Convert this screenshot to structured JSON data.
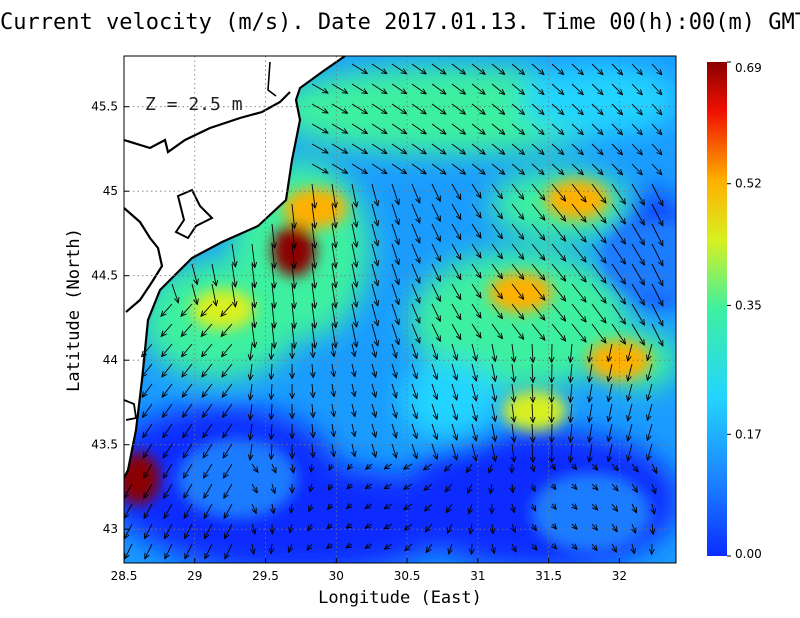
{
  "title": "Current velocity (m/s). Date 2017.01.13. Time 00(h):00(m) GMT",
  "depth_label": "Z = 2.5 m",
  "x_axis": {
    "label": "Longitude (East)",
    "range": [
      28.5,
      32.4
    ],
    "ticks": [
      {
        "v": 28.5,
        "t": "28.5"
      },
      {
        "v": 29,
        "t": "29"
      },
      {
        "v": 29.5,
        "t": "29.5"
      },
      {
        "v": 30,
        "t": "30"
      },
      {
        "v": 30.5,
        "t": "30.5"
      },
      {
        "v": 31,
        "t": "31"
      },
      {
        "v": 31.5,
        "t": "31.5"
      },
      {
        "v": 32,
        "t": "32"
      }
    ]
  },
  "y_axis": {
    "label": "Latitude (North)",
    "range": [
      42.8,
      45.8
    ],
    "ticks": [
      {
        "v": 43,
        "t": "43"
      },
      {
        "v": 43.5,
        "t": "43.5"
      },
      {
        "v": 44,
        "t": "44"
      },
      {
        "v": 44.5,
        "t": "44.5"
      },
      {
        "v": 45,
        "t": "45"
      },
      {
        "v": 45.5,
        "t": "45.5"
      }
    ]
  },
  "colorbar": {
    "range": [
      0,
      0.69
    ],
    "ticks": [
      "0.69",
      "0.52",
      "0.35",
      "0.17",
      "0.00"
    ],
    "tick_values": [
      0.69,
      0.52,
      0.35,
      0.17,
      0.0
    ],
    "colors": [
      "#0a2cff",
      "#1a7cff",
      "#23d4ff",
      "#3ef0a0",
      "#d8f020",
      "#ffb000",
      "#f01000",
      "#8b0000"
    ]
  },
  "chart_data": {
    "type": "heatmap",
    "title": "Current velocity (m/s). Date 2017.01.13. Time 00(h):00(m) GMT",
    "xlabel": "Longitude (East)",
    "ylabel": "Latitude (North)",
    "xlim": [
      28.5,
      32.4
    ],
    "ylim": [
      42.8,
      45.8
    ],
    "grid": true,
    "value_units": "m/s",
    "speed_hotspots": [
      {
        "lon": 28.6,
        "lat": 43.3,
        "speed": 0.66
      },
      {
        "lon": 29.7,
        "lat": 44.65,
        "speed": 0.64
      },
      {
        "lon": 29.85,
        "lat": 44.9,
        "speed": 0.45
      },
      {
        "lon": 31.7,
        "lat": 44.95,
        "speed": 0.52
      },
      {
        "lon": 31.3,
        "lat": 44.4,
        "speed": 0.5
      },
      {
        "lon": 32.0,
        "lat": 44.0,
        "speed": 0.46
      },
      {
        "lon": 29.2,
        "lat": 44.3,
        "speed": 0.38
      },
      {
        "lon": 31.4,
        "lat": 43.7,
        "speed": 0.35
      }
    ],
    "low_speed_regions": [
      {
        "lon": 29.3,
        "lat": 43.3,
        "speed": 0.04
      },
      {
        "lon": 31.8,
        "lat": 43.1,
        "speed": 0.04
      },
      {
        "lon": 32.3,
        "lat": 44.6,
        "speed": 0.07
      }
    ],
    "background_speed": 0.2
  }
}
